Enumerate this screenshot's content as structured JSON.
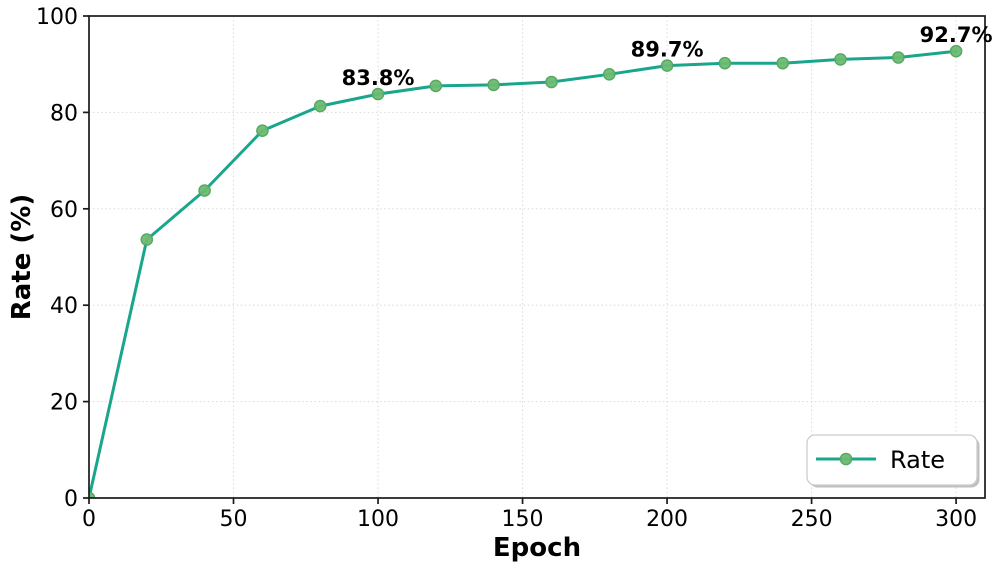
{
  "chart_data": {
    "type": "line",
    "title": "",
    "xlabel": "Epoch",
    "ylabel": "Rate (%)",
    "xlim": [
      0,
      310
    ],
    "ylim": [
      0,
      100
    ],
    "x_ticks": [
      0,
      50,
      100,
      150,
      200,
      250,
      300
    ],
    "y_ticks": [
      0,
      20,
      40,
      60,
      80,
      100
    ],
    "grid": true,
    "grid_style": "dotted",
    "grid_color": "#dedede",
    "spine_color": "#1a1a1a",
    "series": [
      {
        "name": "Rate",
        "x": [
          0,
          20,
          40,
          60,
          80,
          100,
          120,
          140,
          160,
          180,
          200,
          220,
          240,
          260,
          280,
          300
        ],
        "values": [
          0,
          53.6,
          63.8,
          76.2,
          81.3,
          83.8,
          85.5,
          85.7,
          86.3,
          87.9,
          89.7,
          90.2,
          90.2,
          91.0,
          91.4,
          92.7
        ],
        "line_color": "#1aa68c",
        "marker": "circle",
        "marker_color": "#6cba72",
        "marker_edge_color": "#57a763"
      }
    ],
    "annotations": [
      {
        "x": 100,
        "y": 83.8,
        "label": "83.8%"
      },
      {
        "x": 200,
        "y": 89.7,
        "label": "89.7%"
      },
      {
        "x": 300,
        "y": 92.7,
        "label": "92.7%"
      }
    ],
    "legend": {
      "label": "Rate",
      "position": "lower right"
    }
  }
}
